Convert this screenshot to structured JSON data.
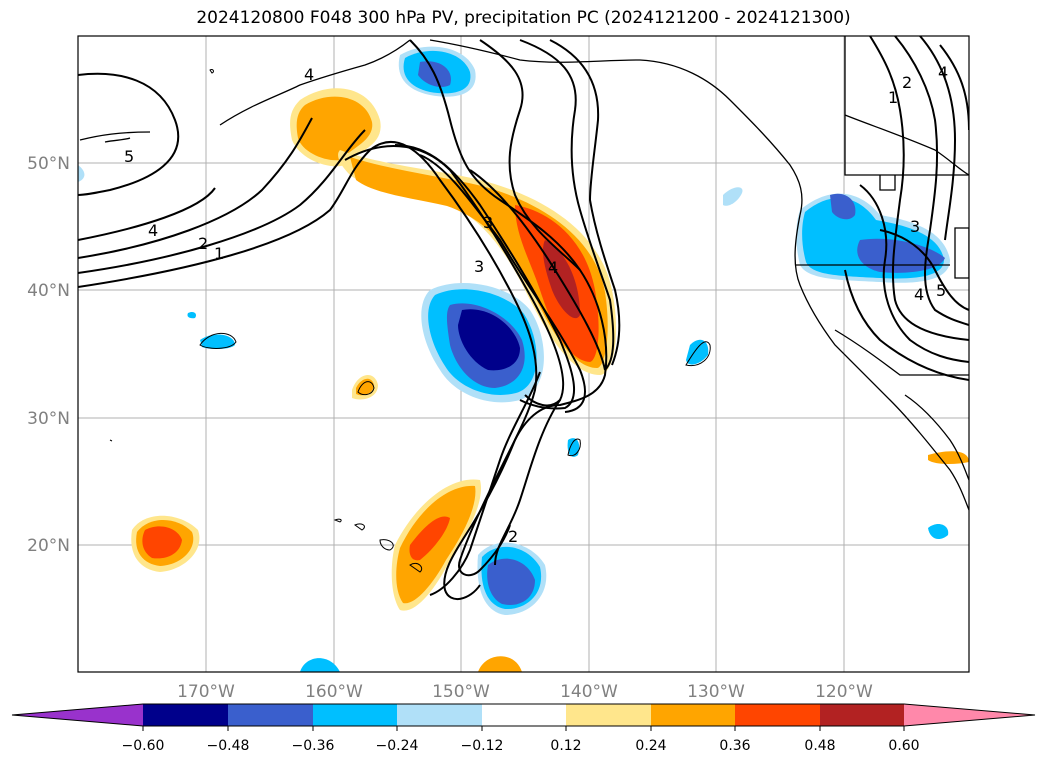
{
  "title": "2024120800 F048 300 hPa PV, precipitation PC (2024121200 - 2024121300)",
  "map": {
    "lon_ticks": [
      "170°W",
      "160°W",
      "150°W",
      "140°W",
      "130°W",
      "120°W"
    ],
    "lat_ticks": [
      "50°N",
      "40°N",
      "30°N",
      "20°N"
    ],
    "contour_labels": [
      "5",
      "4",
      "2",
      "1",
      "4",
      "3",
      "3",
      "4",
      "2",
      "1",
      "2",
      "4",
      "3",
      "4",
      "5"
    ]
  },
  "colorbar": {
    "ticks": [
      "−0.60",
      "−0.48",
      "−0.36",
      "−0.24",
      "−0.12",
      "0.12",
      "0.24",
      "0.36",
      "0.48",
      "0.60"
    ],
    "colors": [
      "#9932cc",
      "#00008b",
      "#3a5fcd",
      "#00bfff",
      "#b0e0f8",
      "#ffffff",
      "#ffe68c",
      "#ffa500",
      "#ff4500",
      "#b22222",
      "#ff88aa"
    ]
  }
}
